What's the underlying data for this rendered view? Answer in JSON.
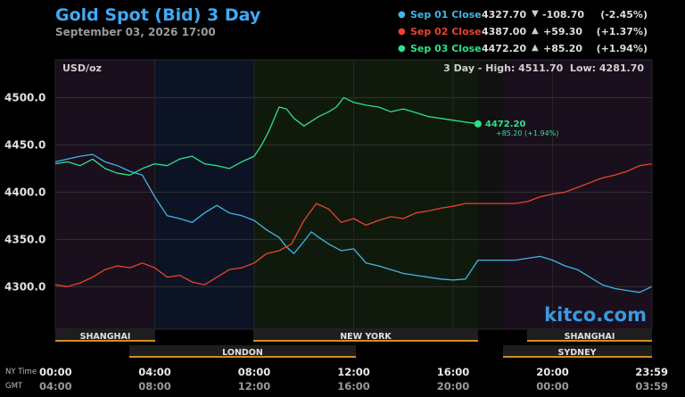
{
  "header": {
    "title": "Gold Spot (Bid) 3 Day",
    "subtitle": "September 03, 2026 17:00"
  },
  "legend": [
    {
      "label": "Sep 01 Close",
      "value": "4327.70",
      "arrow": "▼",
      "change": "-108.70",
      "pct": "(-2.45%)",
      "color": "#3fb6e8"
    },
    {
      "label": "Sep 02 Close",
      "value": "4387.00",
      "arrow": "▲",
      "change": "+59.30",
      "pct": "(+1.37%)",
      "color": "#e8432e"
    },
    {
      "label": "Sep 03 Close",
      "value": "4472.20",
      "arrow": "▲",
      "change": "+85.20",
      "pct": "(+1.94%)",
      "color": "#2fe08a"
    }
  ],
  "plot": {
    "unit": "USD/oz",
    "range_text": "3 Day - High: 4511.70  Low: 4281.70",
    "watermark": "kitco.com",
    "last_value": "4472.20",
    "last_change": "+85.20 (+1.94%)"
  },
  "sessions": {
    "top": [
      "SHANGHAI",
      "NEW YORK",
      "SHANGHAI"
    ],
    "bottom": [
      "LONDON",
      "SYDNEY"
    ]
  },
  "time_axis": {
    "ny_label": "NY Time",
    "gmt_label": "GMT",
    "ny": [
      "00:00",
      "04:00",
      "08:00",
      "12:00",
      "16:00",
      "20:00",
      "23:59"
    ],
    "gmt": [
      "04:00",
      "08:00",
      "12:00",
      "16:00",
      "20:00",
      "00:00",
      "03:59"
    ]
  },
  "chart_data": {
    "type": "line",
    "title": "Gold Spot (Bid) 3 Day",
    "ylabel": "USD/oz",
    "ylim": [
      4255,
      4540
    ],
    "xlim": [
      0,
      24
    ],
    "yticks": [
      "4300.0",
      "4350.0",
      "4400.0",
      "4450.0",
      "4500.0"
    ],
    "ytick_values": [
      4300,
      4350,
      4400,
      4450,
      4500
    ],
    "x_unit": "hours (NY time)",
    "series": [
      {
        "name": "Sep 01",
        "color": "#3fb6e8",
        "x": [
          0,
          0.5,
          1,
          1.5,
          2,
          2.5,
          3,
          3.5,
          4,
          4.5,
          5,
          5.5,
          6,
          6.5,
          7,
          7.5,
          8,
          8.5,
          9,
          9.3,
          9.6,
          10,
          10.3,
          10.6,
          11,
          11.5,
          12,
          12.5,
          13,
          13.5,
          14,
          14.5,
          15,
          15.5,
          16,
          16.5,
          17,
          17.5,
          18,
          18.5,
          19,
          19.5,
          20,
          20.5,
          21,
          21.5,
          22,
          22.5,
          23,
          23.5,
          23.99
        ],
        "y": [
          4432,
          4435,
          4438,
          4440,
          4432,
          4428,
          4422,
          4418,
          4395,
          4375,
          4372,
          4368,
          4378,
          4386,
          4378,
          4375,
          4370,
          4360,
          4352,
          4342,
          4335,
          4348,
          4358,
          4352,
          4345,
          4338,
          4340,
          4325,
          4322,
          4318,
          4314,
          4312,
          4310,
          4308,
          4307,
          4308,
          4328,
          4328,
          4328,
          4328,
          4330,
          4332,
          4328,
          4322,
          4318,
          4310,
          4302,
          4298,
          4296,
          4294,
          4300
        ]
      },
      {
        "name": "Sep 02",
        "color": "#e8432e",
        "x": [
          0,
          0.5,
          1,
          1.5,
          2,
          2.5,
          3,
          3.5,
          4,
          4.5,
          5,
          5.5,
          6,
          6.5,
          7,
          7.5,
          8,
          8.5,
          9,
          9.5,
          10,
          10.5,
          11,
          11.5,
          12,
          12.5,
          13,
          13.5,
          14,
          14.5,
          15,
          15.5,
          16,
          16.5,
          17,
          17.5,
          18,
          18.5,
          19,
          19.5,
          20,
          20.5,
          21,
          21.5,
          22,
          22.5,
          23,
          23.5,
          23.99
        ],
        "y": [
          4302,
          4300,
          4304,
          4310,
          4318,
          4322,
          4320,
          4325,
          4320,
          4310,
          4312,
          4305,
          4302,
          4310,
          4318,
          4320,
          4325,
          4335,
          4338,
          4345,
          4370,
          4388,
          4382,
          4368,
          4372,
          4365,
          4370,
          4374,
          4372,
          4378,
          4380,
          4383,
          4385,
          4388,
          4388,
          4388,
          4388,
          4388,
          4390,
          4395,
          4398,
          4400,
          4405,
          4410,
          4415,
          4418,
          4422,
          4428,
          4430
        ]
      },
      {
        "name": "Sep 03",
        "color": "#2fe08a",
        "x": [
          0,
          0.5,
          1,
          1.5,
          2,
          2.5,
          3,
          3.5,
          4,
          4.5,
          5,
          5.5,
          6,
          6.5,
          7,
          7.5,
          8,
          8.3,
          8.6,
          9,
          9.3,
          9.6,
          10,
          10.3,
          10.6,
          11,
          11.3,
          11.6,
          12,
          12.5,
          13,
          13.5,
          14,
          14.5,
          15,
          15.5,
          16,
          16.5,
          17
        ],
        "y": [
          4430,
          4432,
          4428,
          4435,
          4425,
          4420,
          4418,
          4425,
          4430,
          4428,
          4435,
          4438,
          4430,
          4428,
          4425,
          4432,
          4438,
          4450,
          4465,
          4490,
          4488,
          4478,
          4470,
          4475,
          4480,
          4485,
          4490,
          4500,
          4495,
          4492,
          4490,
          4485,
          4488,
          4484,
          4480,
          4478,
          4476,
          4474,
          4472.2
        ]
      }
    ]
  }
}
